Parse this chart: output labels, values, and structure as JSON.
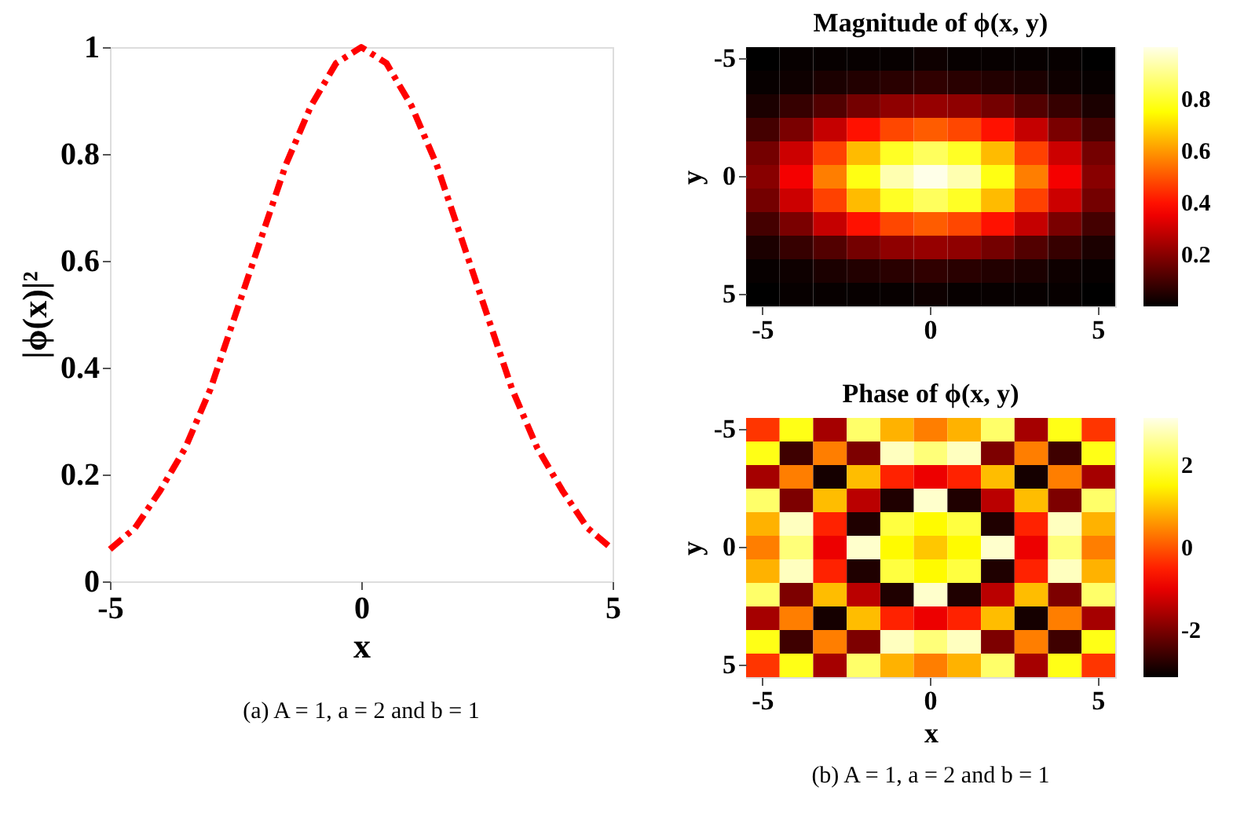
{
  "chart_data": [
    {
      "type": "line",
      "xlabel": "x",
      "ylabel": "|ϕ(x)|²",
      "x": [
        -5,
        -4.5,
        -4,
        -3.5,
        -3,
        -2.5,
        -2,
        -1.5,
        -1,
        -0.5,
        0,
        0.5,
        1,
        1.5,
        2,
        2.5,
        3,
        3.5,
        4,
        4.5,
        5
      ],
      "series": [
        {
          "color": "#ff0000",
          "values": [
            0.06,
            0.1,
            0.17,
            0.25,
            0.36,
            0.5,
            0.64,
            0.78,
            0.89,
            0.97,
            1.0,
            0.97,
            0.89,
            0.78,
            0.64,
            0.5,
            0.36,
            0.25,
            0.17,
            0.1,
            0.06
          ]
        }
      ],
      "xlim": [
        -5,
        5
      ],
      "xticks": [
        -5,
        0,
        5
      ],
      "ylim": [
        0,
        1
      ],
      "yticks": [
        0,
        0.2,
        0.4,
        0.6,
        0.8,
        1
      ],
      "line_style": "dashed",
      "marker": "none",
      "grid": false,
      "annotations": [
        "(a) A = 1, a = 2 and b = 1"
      ]
    },
    {
      "type": "heatmap",
      "title": "Magnitude of ϕ(x, y)",
      "ylabel": "y",
      "categories": [
        "-5",
        null,
        null,
        null,
        null,
        "0",
        null,
        null,
        null,
        null,
        "5"
      ],
      "y_categories": [
        "-5",
        null,
        null,
        null,
        null,
        "0",
        null,
        null,
        null,
        null,
        "5"
      ],
      "cells": [
        [
          0.0,
          0.01,
          0.01,
          0.01,
          0.01,
          0.02,
          0.01,
          0.01,
          0.01,
          0.01,
          0.0
        ],
        [
          0.01,
          0.02,
          0.04,
          0.05,
          0.06,
          0.07,
          0.06,
          0.05,
          0.04,
          0.02,
          0.01
        ],
        [
          0.04,
          0.08,
          0.12,
          0.17,
          0.21,
          0.22,
          0.21,
          0.17,
          0.12,
          0.08,
          0.04
        ],
        [
          0.1,
          0.18,
          0.29,
          0.4,
          0.48,
          0.51,
          0.48,
          0.4,
          0.29,
          0.18,
          0.1
        ],
        [
          0.17,
          0.3,
          0.47,
          0.65,
          0.79,
          0.85,
          0.79,
          0.65,
          0.47,
          0.3,
          0.17
        ],
        [
          0.2,
          0.36,
          0.56,
          0.77,
          0.94,
          1.0,
          0.94,
          0.77,
          0.56,
          0.36,
          0.2
        ],
        [
          0.17,
          0.3,
          0.47,
          0.65,
          0.79,
          0.85,
          0.79,
          0.65,
          0.47,
          0.3,
          0.17
        ],
        [
          0.1,
          0.18,
          0.29,
          0.4,
          0.48,
          0.51,
          0.48,
          0.4,
          0.29,
          0.18,
          0.1
        ],
        [
          0.04,
          0.08,
          0.12,
          0.17,
          0.21,
          0.22,
          0.21,
          0.17,
          0.12,
          0.08,
          0.04
        ],
        [
          0.01,
          0.02,
          0.04,
          0.05,
          0.06,
          0.07,
          0.06,
          0.05,
          0.04,
          0.02,
          0.01
        ],
        [
          0.0,
          0.01,
          0.01,
          0.01,
          0.01,
          0.02,
          0.01,
          0.01,
          0.01,
          0.01,
          0.0
        ]
      ],
      "clim": [
        0,
        1
      ],
      "cticks": [
        0.2,
        0.4,
        0.6,
        0.8
      ]
    },
    {
      "type": "heatmap",
      "title": "Phase of ϕ(x, y)",
      "xlabel": "x",
      "ylabel": "y",
      "categories": [
        "-5",
        null,
        null,
        null,
        null,
        "0",
        null,
        null,
        null,
        null,
        "5"
      ],
      "y_categories": [
        "-5",
        null,
        null,
        null,
        null,
        "0",
        null,
        null,
        null,
        null,
        "5"
      ],
      "cells": [
        [
          -0.3,
          1.72,
          -1.62,
          2.28,
          0.86,
          0.38,
          0.86,
          2.28,
          -1.62,
          1.72,
          -0.3
        ],
        [
          1.72,
          -2.57,
          0.38,
          -1.99,
          2.86,
          2.39,
          2.86,
          -1.99,
          0.38,
          -2.57,
          1.72
        ],
        [
          -1.62,
          0.38,
          -2.95,
          0.96,
          -0.47,
          -0.95,
          -0.47,
          0.96,
          -2.95,
          0.38,
          -1.62
        ],
        [
          2.28,
          -1.99,
          0.96,
          -1.42,
          -2.85,
          2.95,
          -2.85,
          -1.42,
          0.96,
          -1.99,
          2.28
        ],
        [
          0.86,
          2.86,
          -0.47,
          -2.85,
          2.0,
          1.53,
          2.0,
          -2.85,
          -0.47,
          2.86,
          0.86
        ],
        [
          0.38,
          2.39,
          -0.95,
          2.95,
          1.53,
          1.05,
          1.53,
          2.95,
          -0.95,
          2.39,
          0.38
        ],
        [
          0.86,
          2.86,
          -0.47,
          -2.85,
          2.0,
          1.53,
          2.0,
          -2.85,
          -0.47,
          2.86,
          0.86
        ],
        [
          2.28,
          -1.99,
          0.96,
          -1.42,
          -2.85,
          2.95,
          -2.85,
          -1.42,
          0.96,
          -1.99,
          2.28
        ],
        [
          -1.62,
          0.38,
          -2.95,
          0.96,
          -0.47,
          -0.95,
          -0.47,
          0.96,
          -2.95,
          0.38,
          -1.62
        ],
        [
          1.72,
          -2.57,
          0.38,
          -1.99,
          2.86,
          2.39,
          2.86,
          -1.99,
          0.38,
          -2.57,
          1.72
        ],
        [
          -0.3,
          1.72,
          -1.62,
          2.28,
          0.86,
          0.38,
          0.86,
          2.28,
          -1.62,
          1.72,
          -0.3
        ]
      ],
      "clim": [
        -3.14,
        3.14
      ],
      "cticks": [
        -2,
        0,
        2
      ],
      "annotations": [
        "(b) A = 1, a = 2 and b = 1"
      ]
    }
  ]
}
